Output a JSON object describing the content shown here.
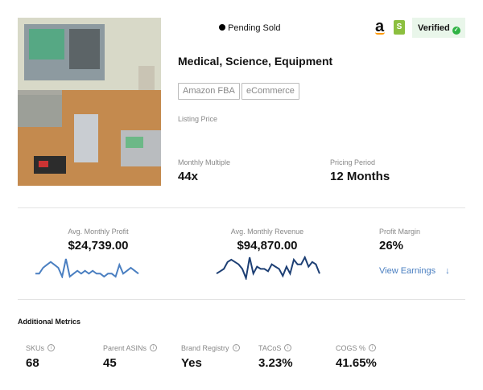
{
  "status": {
    "label": "Pending Sold"
  },
  "badges": {
    "verified": "Verified",
    "platform_icons": [
      "amazon-icon",
      "shopify-icon"
    ]
  },
  "title": "Medical, Science, Equipment",
  "tags": [
    "Amazon FBA",
    "eCommerce"
  ],
  "listing_price": {
    "label": "Listing Price"
  },
  "monthly_multiple": {
    "label": "Monthly Multiple",
    "value": "44x"
  },
  "pricing_period": {
    "label": "Pricing Period",
    "value": "12 Months"
  },
  "profit": {
    "label": "Avg. Monthly Profit",
    "value": "$24,739.00",
    "sparkline": [
      3,
      3,
      5,
      6,
      7,
      6,
      5,
      2,
      8,
      2,
      3,
      4,
      3,
      4,
      3,
      4,
      3,
      3,
      2,
      3,
      3,
      2,
      6,
      3,
      4,
      5,
      4,
      3
    ]
  },
  "revenue": {
    "label": "Avg. Monthly Revenue",
    "value": "$94,870.00",
    "sparkline": [
      3,
      4,
      5,
      8,
      9,
      8,
      7,
      5,
      1,
      10,
      3,
      6,
      5,
      5,
      4,
      7,
      6,
      5,
      2,
      6,
      3,
      9,
      7,
      7,
      10,
      6,
      8,
      7,
      3
    ]
  },
  "margin": {
    "label": "Profit Margin",
    "value": "26%"
  },
  "view_earnings": "View Earnings",
  "colors": {
    "profit_line": "#4a7fc1",
    "revenue_line": "#1d3f74",
    "link": "#4a7fc1",
    "verified_bg": "#e9f6ea",
    "verified_check": "#2fb344"
  },
  "additional": {
    "title": "Additional Metrics",
    "metrics": [
      {
        "label": "SKUs",
        "value": "68"
      },
      {
        "label": "Parent ASINs",
        "value": "45"
      },
      {
        "label": "Brand Registry",
        "value": "Yes"
      },
      {
        "label": "TACoS",
        "value": "3.23%"
      },
      {
        "label": "COGS %",
        "value": "41.65%"
      }
    ]
  }
}
